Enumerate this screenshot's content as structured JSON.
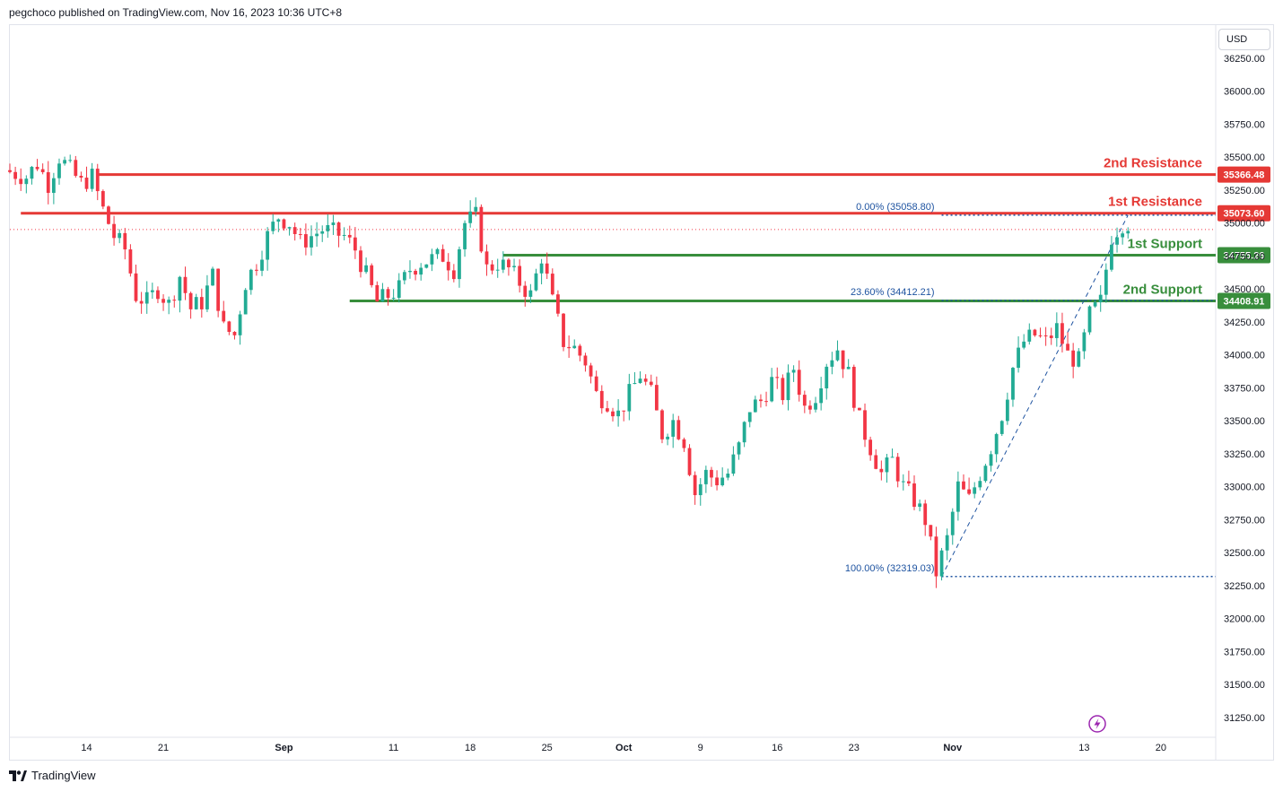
{
  "header": {
    "text": "pegchoco published on TradingView.com, Nov 16, 2023 10:36 UTC+8"
  },
  "currency": "USD",
  "footer": {
    "brand": "TradingView"
  },
  "colors": {
    "up": "#22ab94",
    "down": "#f23645",
    "resistance": "#e53935",
    "support": "#388e3c",
    "fib": "#1e53a0",
    "fib_label": "#1e53a0",
    "axis_text": "#131722",
    "logo": "#9c27b0"
  },
  "chart_data": {
    "type": "candlestick",
    "symbol_unit": "USD",
    "ylim": [
      31100,
      36500
    ],
    "y_ticks": [
      31250,
      31500,
      31750,
      32000,
      32250,
      32500,
      32750,
      33000,
      33250,
      33500,
      33750,
      34000,
      34250,
      34500,
      34750,
      35000,
      35250,
      35500,
      35750,
      36000,
      36250
    ],
    "y_tick_labels": [
      "31250.00",
      "31500.00",
      "31750.00",
      "32000.00",
      "32250.00",
      "32500.00",
      "32750.00",
      "33000.00",
      "33250.00",
      "33500.00",
      "33750.00",
      "34000.00",
      "34250.00",
      "34500.00",
      "34750.00",
      "35000.00",
      "35250.00",
      "35500.00",
      "35750.00",
      "36000.00",
      "36250.00"
    ],
    "x_range_days": [
      "2023-08-07",
      "2023-11-25"
    ],
    "x_ticks": [
      {
        "date": "2023-08-14",
        "label": "14",
        "bold": false
      },
      {
        "date": "2023-08-21",
        "label": "21",
        "bold": false
      },
      {
        "date": "2023-09-01",
        "label": "Sep",
        "bold": true
      },
      {
        "date": "2023-09-11",
        "label": "11",
        "bold": false
      },
      {
        "date": "2023-09-18",
        "label": "18",
        "bold": false
      },
      {
        "date": "2023-09-25",
        "label": "25",
        "bold": false
      },
      {
        "date": "2023-10-02",
        "label": "Oct",
        "bold": true
      },
      {
        "date": "2023-10-09",
        "label": "9",
        "bold": false
      },
      {
        "date": "2023-10-16",
        "label": "16",
        "bold": false
      },
      {
        "date": "2023-10-23",
        "label": "23",
        "bold": false
      },
      {
        "date": "2023-11-01",
        "label": "Nov",
        "bold": true
      },
      {
        "date": "2023-11-13",
        "label": "13",
        "bold": false
      },
      {
        "date": "2023-11-20",
        "label": "20",
        "bold": false
      }
    ],
    "price_path": [
      [
        "2023-08-07",
        35400
      ],
      [
        "2023-08-09",
        35350
      ],
      [
        "2023-08-10",
        35450
      ],
      [
        "2023-08-11",
        35300
      ],
      [
        "2023-08-12",
        35500
      ],
      [
        "2023-08-14",
        35300
      ],
      [
        "2023-08-15",
        35350
      ],
      [
        "2023-08-16",
        35100
      ],
      [
        "2023-08-17",
        34900
      ],
      [
        "2023-08-18",
        34800
      ],
      [
        "2023-08-19",
        34450
      ],
      [
        "2023-08-20",
        34400
      ],
      [
        "2023-08-21",
        34500
      ],
      [
        "2023-08-22",
        34380
      ],
      [
        "2023-08-23",
        34600
      ],
      [
        "2023-08-24",
        34350
      ],
      [
        "2023-08-25",
        34400
      ],
      [
        "2023-08-26",
        34600
      ],
      [
        "2023-08-27",
        34200
      ],
      [
        "2023-08-28",
        34150
      ],
      [
        "2023-08-29",
        34550
      ],
      [
        "2023-08-30",
        34700
      ],
      [
        "2023-08-31",
        34900
      ],
      [
        "2023-09-01",
        35050
      ],
      [
        "2023-09-02",
        35000
      ],
      [
        "2023-09-03",
        34850
      ],
      [
        "2023-09-05",
        34950
      ],
      [
        "2023-09-07",
        34900
      ],
      [
        "2023-09-08",
        34800
      ],
      [
        "2023-09-09",
        34600
      ],
      [
        "2023-09-10",
        34400
      ],
      [
        "2023-09-11",
        34450
      ],
      [
        "2023-09-12",
        34500
      ],
      [
        "2023-09-13",
        34650
      ],
      [
        "2023-09-14",
        34700
      ],
      [
        "2023-09-16",
        34750
      ],
      [
        "2023-09-17",
        34650
      ],
      [
        "2023-09-18",
        35000
      ],
      [
        "2023-09-19",
        35050
      ],
      [
        "2023-09-20",
        34650
      ],
      [
        "2023-09-21",
        34700
      ],
      [
        "2023-09-22",
        34650
      ],
      [
        "2023-09-23",
        34550
      ],
      [
        "2023-09-24",
        34450
      ],
      [
        "2023-09-25",
        34750
      ],
      [
        "2023-09-26",
        34400
      ],
      [
        "2023-09-27",
        34100
      ],
      [
        "2023-09-28",
        34050
      ],
      [
        "2023-09-29",
        33950
      ],
      [
        "2023-09-30",
        33700
      ],
      [
        "2023-10-01",
        33650
      ],
      [
        "2023-10-02",
        33550
      ],
      [
        "2023-10-03",
        33700
      ],
      [
        "2023-10-04",
        33850
      ],
      [
        "2023-10-05",
        33700
      ],
      [
        "2023-10-06",
        33400
      ],
      [
        "2023-10-07",
        33500
      ],
      [
        "2023-10-08",
        33350
      ],
      [
        "2023-10-09",
        32950
      ],
      [
        "2023-10-10",
        33100
      ],
      [
        "2023-10-11",
        33050
      ],
      [
        "2023-10-12",
        33100
      ],
      [
        "2023-10-13",
        33300
      ],
      [
        "2023-10-14",
        33600
      ],
      [
        "2023-10-15",
        33650
      ],
      [
        "2023-10-16",
        33800
      ],
      [
        "2023-10-17",
        33700
      ],
      [
        "2023-10-18",
        33900
      ],
      [
        "2023-10-19",
        33600
      ],
      [
        "2023-10-20",
        33700
      ],
      [
        "2023-10-21",
        33950
      ],
      [
        "2023-10-22",
        34050
      ],
      [
        "2023-10-23",
        33850
      ],
      [
        "2023-10-24",
        33500
      ],
      [
        "2023-10-25",
        33300
      ],
      [
        "2023-10-26",
        33100
      ],
      [
        "2023-10-27",
        33200
      ],
      [
        "2023-10-28",
        33000
      ],
      [
        "2023-10-29",
        32900
      ],
      [
        "2023-10-30",
        32750
      ],
      [
        "2023-10-31",
        32350
      ],
      [
        "2023-11-01",
        32600
      ],
      [
        "2023-11-02",
        33000
      ],
      [
        "2023-11-03",
        32900
      ],
      [
        "2023-11-04",
        33100
      ],
      [
        "2023-11-05",
        33300
      ],
      [
        "2023-11-06",
        33550
      ],
      [
        "2023-11-07",
        33900
      ],
      [
        "2023-11-08",
        34100
      ],
      [
        "2023-11-09",
        34150
      ],
      [
        "2023-11-10",
        34100
      ],
      [
        "2023-11-11",
        34200
      ],
      [
        "2023-11-12",
        34000
      ],
      [
        "2023-11-13",
        33950
      ],
      [
        "2023-11-14",
        34300
      ],
      [
        "2023-11-15",
        34400
      ],
      [
        "2023-11-16",
        34900
      ],
      [
        "2023-11-17",
        35000
      ]
    ],
    "levels": [
      {
        "label": "2nd Resistance",
        "value": 35366.48,
        "price_label": "35366.48",
        "kind": "resistance",
        "from": "2023-08-15"
      },
      {
        "label": "1st Resistance",
        "value": 35073.6,
        "price_label": "35073.60",
        "kind": "resistance",
        "from": "2023-08-08"
      },
      {
        "label": "1st Support",
        "value": 34755.26,
        "price_label": "34755.26",
        "kind": "support",
        "from": "2023-09-21"
      },
      {
        "label": "2nd Support",
        "value": 34408.91,
        "price_label": "34408.91",
        "kind": "support",
        "from": "2023-09-07"
      }
    ],
    "fib_levels": [
      {
        "label": "0.00% (35058.80)",
        "value": 35058.8
      },
      {
        "label": "23.60% (34412.21)",
        "value": 34412.21
      },
      {
        "label": "100.00% (32319.03)",
        "value": 32319.03
      }
    ],
    "fib_start": "2023-10-31",
    "fib_end": "2023-11-25",
    "trendline": [
      [
        "2023-10-31",
        32319.03
      ],
      [
        "2023-11-17",
        35058.8
      ]
    ],
    "current_price_line": 34950
  }
}
